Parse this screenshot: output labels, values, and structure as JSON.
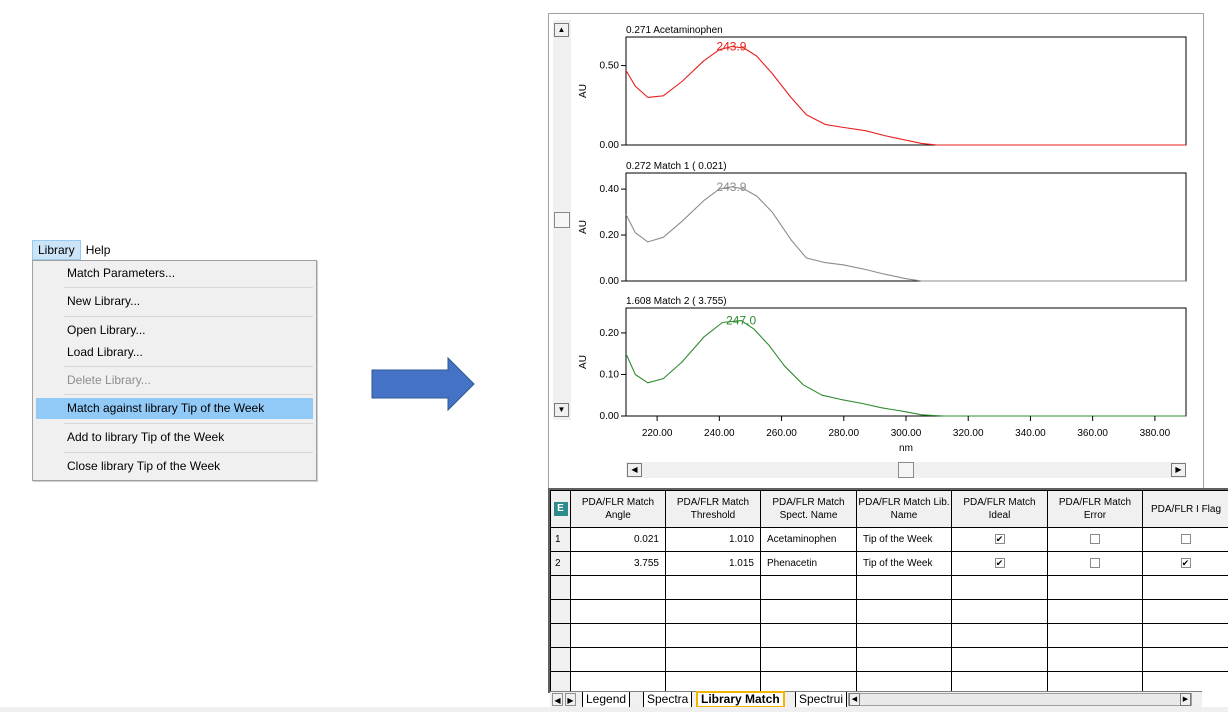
{
  "menubar": {
    "items": [
      "Library",
      "Help"
    ]
  },
  "library_menu": {
    "items": [
      {
        "label": "Match Parameters...",
        "enabled": true,
        "highlighted": false
      },
      {
        "label": "New Library...",
        "enabled": true,
        "highlighted": false
      },
      {
        "label": "Open Library...",
        "enabled": true,
        "highlighted": false
      },
      {
        "label": "Load Library...",
        "enabled": true,
        "highlighted": false
      },
      {
        "label": "Delete Library...",
        "enabled": false,
        "highlighted": false
      },
      {
        "label": "Match against library Tip of the Week",
        "enabled": true,
        "highlighted": true
      },
      {
        "label": "Add to library Tip of the Week",
        "enabled": true,
        "highlighted": false
      },
      {
        "label": "Close library Tip of the Week",
        "enabled": true,
        "highlighted": false
      }
    ]
  },
  "arrow": {
    "color": "#4472c4",
    "icon": "right-arrow-icon"
  },
  "spectra": {
    "x_axis": {
      "label": "nm",
      "ticks": [
        "220.00",
        "240.00",
        "260.00",
        "280.00",
        "300.00",
        "320.00",
        "340.00",
        "360.00",
        "380.00"
      ]
    },
    "y_label": "AU",
    "panels": [
      {
        "title": "0.271 Acetaminophen",
        "peak_label": "243.9",
        "color": "#e8201e",
        "y_ticks": [
          "0.50",
          "0.00"
        ]
      },
      {
        "title": "0.272 Match 1 ( 0.021)",
        "peak_label": "243.9",
        "color": "#8c8c8c",
        "y_ticks": [
          "0.40",
          "0.20",
          "0.00"
        ]
      },
      {
        "title": "1.608 Match 2 ( 3.755)",
        "peak_label": "247.0",
        "color": "#2e8b2e",
        "y_ticks": [
          "0.20",
          "0.10",
          "0.00"
        ]
      }
    ]
  },
  "chart_data": [
    {
      "type": "line",
      "title": "0.271 Acetaminophen",
      "xlabel": "nm",
      "ylabel": "AU",
      "xlim": [
        210,
        390
      ],
      "ylim": [
        0,
        0.68
      ],
      "series": [
        {
          "name": "Acetaminophen",
          "x": [
            210,
            213,
            217,
            222,
            228,
            235,
            240,
            244,
            248,
            252,
            257,
            263,
            268,
            274,
            280,
            287,
            293,
            300,
            305,
            310,
            330,
            360,
            390
          ],
          "y": [
            0.47,
            0.37,
            0.3,
            0.31,
            0.4,
            0.53,
            0.6,
            0.62,
            0.61,
            0.56,
            0.45,
            0.3,
            0.19,
            0.13,
            0.11,
            0.09,
            0.06,
            0.03,
            0.01,
            0.0,
            0.0,
            0.0,
            0.0
          ]
        }
      ]
    },
    {
      "type": "line",
      "title": "0.272 Match 1 ( 0.021)",
      "xlabel": "nm",
      "ylabel": "AU",
      "xlim": [
        210,
        390
      ],
      "ylim": [
        0,
        0.47
      ],
      "series": [
        {
          "name": "Match 1",
          "x": [
            210,
            213,
            217,
            222,
            228,
            235,
            240,
            244,
            248,
            252,
            257,
            263,
            268,
            274,
            280,
            287,
            293,
            300,
            305,
            310,
            330,
            360,
            390
          ],
          "y": [
            0.29,
            0.21,
            0.17,
            0.19,
            0.26,
            0.35,
            0.4,
            0.41,
            0.4,
            0.37,
            0.3,
            0.18,
            0.1,
            0.08,
            0.07,
            0.05,
            0.03,
            0.01,
            0.0,
            0.0,
            0.0,
            0.0,
            0.0
          ]
        }
      ]
    },
    {
      "type": "line",
      "title": "1.608 Match 2 ( 3.755)",
      "xlabel": "nm",
      "ylabel": "AU",
      "xlim": [
        210,
        390
      ],
      "ylim": [
        0,
        0.26
      ],
      "series": [
        {
          "name": "Match 2",
          "x": [
            210,
            213,
            217,
            222,
            228,
            235,
            241,
            247,
            251,
            256,
            261,
            267,
            273,
            279,
            286,
            292,
            300,
            305,
            312,
            330,
            360,
            390
          ],
          "y": [
            0.15,
            0.1,
            0.08,
            0.09,
            0.13,
            0.19,
            0.225,
            0.23,
            0.21,
            0.17,
            0.12,
            0.075,
            0.05,
            0.04,
            0.03,
            0.02,
            0.01,
            0.003,
            0.0,
            0.0,
            0.0,
            0.0
          ]
        }
      ]
    }
  ],
  "table": {
    "corner_icon": "grid-icon",
    "headers": [
      "PDA/FLR Match Angle",
      "PDA/FLR Match Threshold",
      "PDA/FLR Match Spect. Name",
      "PDA/FLR Match Lib. Name",
      "PDA/FLR Match Ideal",
      "PDA/FLR Match Error",
      "PDA/FLR I Flag"
    ],
    "rows": [
      {
        "num": "1",
        "angle": "0.021",
        "threshold": "1.010",
        "spect_name": "Acetaminophen",
        "lib_name": "Tip of the Week",
        "ideal": true,
        "error": false,
        "flag": false
      },
      {
        "num": "2",
        "angle": "3.755",
        "threshold": "1.015",
        "spect_name": "Phenacetin",
        "lib_name": "Tip of the Week",
        "ideal": true,
        "error": false,
        "flag": true
      }
    ],
    "empty_rows": 5
  },
  "tabs": {
    "items": [
      "Legend",
      "Spectra",
      "Library Match",
      "Spectrui"
    ],
    "active": "Library Match",
    "highlight_color": "#f2b600"
  }
}
